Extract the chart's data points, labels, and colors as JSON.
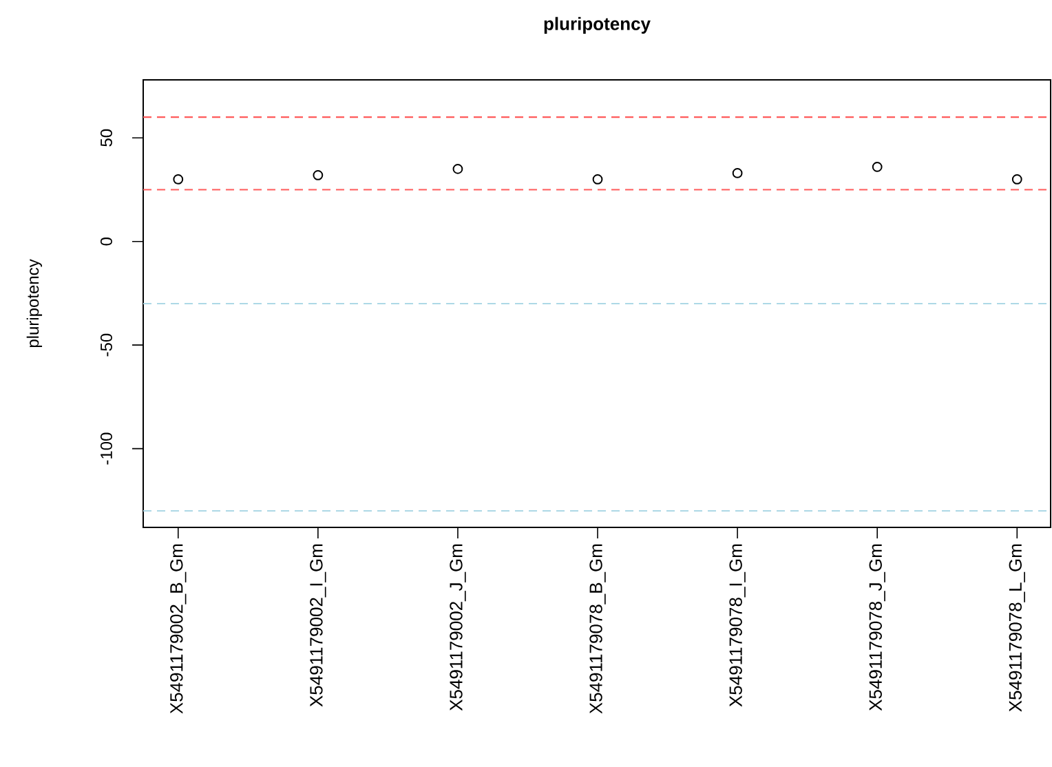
{
  "chart_data": {
    "type": "scatter",
    "title": "pluripotency",
    "ylabel": "pluripotency",
    "categories": [
      "X5491179002_B_Gm",
      "X5491179002_I_Gm",
      "X5491179002_J_Gm",
      "X5491179078_B_Gm",
      "X5491179078_I_Gm",
      "X5491179078_J_Gm",
      "X5491179078_L_Gm"
    ],
    "values": [
      30,
      32,
      35,
      30,
      33,
      36,
      30
    ],
    "color": "#000000",
    "marker": "circle",
    "ylim": [
      -138,
      78
    ],
    "yticks": [
      -100,
      -50,
      0,
      50
    ],
    "ref_lines": [
      {
        "axis": "y",
        "value": 60,
        "color": "#ff5a5a",
        "line_style": "dashed"
      },
      {
        "axis": "y",
        "value": 25,
        "color": "#ff5a5a",
        "line_style": "dashed"
      },
      {
        "axis": "y",
        "value": -30,
        "color": "#add8e6",
        "line_style": "dashed"
      },
      {
        "axis": "y",
        "value": -130,
        "color": "#add8e6",
        "line_style": "dashed"
      }
    ]
  }
}
